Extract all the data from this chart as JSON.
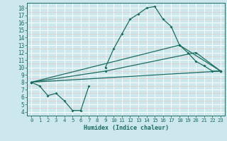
{
  "xlabel": "Humidex (Indice chaleur)",
  "bg_color": "#cce8ec",
  "grid_color": "#ffffff",
  "line_color": "#1a6b60",
  "red_grid_color": "#e8c8c8",
  "xlim": [
    -0.5,
    23.5
  ],
  "ylim": [
    3.5,
    18.7
  ],
  "xticks": [
    0,
    1,
    2,
    3,
    4,
    5,
    6,
    7,
    8,
    9,
    10,
    11,
    12,
    13,
    14,
    15,
    16,
    17,
    18,
    19,
    20,
    21,
    22,
    23
  ],
  "yticks": [
    4,
    5,
    6,
    7,
    8,
    9,
    10,
    11,
    12,
    13,
    14,
    15,
    16,
    17,
    18
  ],
  "main_x1": [
    0,
    1,
    2,
    3,
    4,
    5,
    6,
    7
  ],
  "main_y1": [
    8.0,
    7.5,
    6.2,
    6.5,
    5.5,
    4.2,
    4.2,
    7.5
  ],
  "main_x2": [
    9,
    10,
    11,
    12,
    13,
    14,
    15,
    16,
    17,
    18,
    19,
    20,
    21,
    22,
    23
  ],
  "main_y2": [
    10.0,
    12.5,
    14.5,
    16.5,
    17.2,
    18.0,
    18.2,
    16.5,
    15.5,
    13.0,
    12.0,
    10.8,
    10.2,
    9.5,
    9.5
  ],
  "line2_x": [
    0,
    9,
    20,
    23
  ],
  "line2_y": [
    8.0,
    9.5,
    12.0,
    9.5
  ],
  "line3_x": [
    0,
    23
  ],
  "line3_y": [
    8.0,
    9.5
  ],
  "line4_x": [
    0,
    18,
    23
  ],
  "line4_y": [
    8.0,
    13.0,
    9.5
  ]
}
